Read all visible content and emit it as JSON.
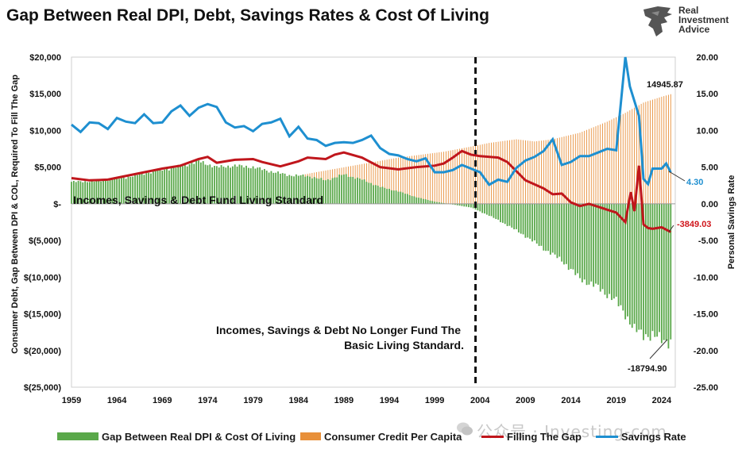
{
  "title": "Gap Between Real DPI, Debt, Savings Rates & Cost Of Living",
  "brand": {
    "line1": "Real",
    "line2": "Investment",
    "line3": "Advice"
  },
  "watermark": "公众号 · Investing-com",
  "colors": {
    "gap_fill": "#5aa84a",
    "credit_fill": "#e8903a",
    "filling_gap": "#c0161c",
    "savings_rate": "#1e8fd0"
  },
  "chart_data": {
    "type": "bar",
    "title": "Gap Between Real DPI, Debt, Savings Rates & Cost Of Living",
    "x_tick_labels": [
      "1959",
      "1964",
      "1969",
      "1974",
      "1979",
      "1984",
      "1989",
      "1994",
      "1999",
      "2004",
      "2009",
      "2014",
      "2019",
      "2024"
    ],
    "x_range": [
      1959,
      2025.5
    ],
    "left_axis": {
      "label": "Consumer Debt, Gap Between DPI & COL, Required To Fill The Gap",
      "range": [
        -25000,
        20000
      ],
      "tick_labels": [
        "$20,000",
        "$15,000",
        "$10,000",
        "$5,000",
        "$-",
        "$(5,000)",
        "$(10,000)",
        "$(15,000)",
        "$(20,000)",
        "$(25,000)"
      ]
    },
    "right_axis": {
      "label": "Personal Savings Rate",
      "range": [
        -25,
        20
      ],
      "tick_labels": [
        "20.00",
        "15.00",
        "10.00",
        "5.00",
        "0.00",
        "-5.00",
        "-10.00",
        "-15.00",
        "-20.00",
        "-25.00"
      ]
    },
    "vertical_marker_year": 2003.5,
    "grid": false,
    "legend_position": "bottom",
    "series": [
      {
        "name": "Gap Between Real DPI & Cost Of Living",
        "kind": "bar",
        "points": [
          [
            1959,
            3000
          ],
          [
            1962,
            3100
          ],
          [
            1965,
            3600
          ],
          [
            1968,
            4400
          ],
          [
            1971,
            5100
          ],
          [
            1973,
            5800
          ],
          [
            1975,
            5000
          ],
          [
            1977,
            5200
          ],
          [
            1979,
            5000
          ],
          [
            1981,
            4400
          ],
          [
            1983,
            3900
          ],
          [
            1985,
            3800
          ],
          [
            1987,
            3200
          ],
          [
            1989,
            4000
          ],
          [
            1991,
            3300
          ],
          [
            1993,
            2300
          ],
          [
            1995,
            1700
          ],
          [
            1997,
            900
          ],
          [
            1999,
            300
          ],
          [
            2001,
            -100
          ],
          [
            2003,
            -500
          ],
          [
            2005,
            -1600
          ],
          [
            2007,
            -2900
          ],
          [
            2009,
            -4400
          ],
          [
            2011,
            -6100
          ],
          [
            2013,
            -7700
          ],
          [
            2015,
            -10200
          ],
          [
            2017,
            -11400
          ],
          [
            2019,
            -13300
          ],
          [
            2020,
            -15000
          ],
          [
            2021,
            -17200
          ],
          [
            2022,
            -17800
          ],
          [
            2023,
            -18000
          ],
          [
            2024,
            -18500
          ],
          [
            2025,
            -18794.9
          ]
        ]
      },
      {
        "name": "Consumer Credit Per Capita",
        "kind": "bar",
        "points": [
          [
            1959,
            300
          ],
          [
            1965,
            700
          ],
          [
            1970,
            1100
          ],
          [
            1975,
            1700
          ],
          [
            1980,
            2700
          ],
          [
            1985,
            4100
          ],
          [
            1990,
            5200
          ],
          [
            1995,
            6300
          ],
          [
            2000,
            7100
          ],
          [
            2003,
            7800
          ],
          [
            2005,
            8300
          ],
          [
            2008,
            8800
          ],
          [
            2010,
            8500
          ],
          [
            2012,
            8800
          ],
          [
            2015,
            9700
          ],
          [
            2018,
            11200
          ],
          [
            2020,
            12400
          ],
          [
            2022,
            13800
          ],
          [
            2024,
            14600
          ],
          [
            2025,
            14945.87
          ]
        ]
      },
      {
        "name": "Filling The Gap",
        "kind": "line",
        "points": [
          [
            1959,
            3500
          ],
          [
            1961,
            3200
          ],
          [
            1963,
            3300
          ],
          [
            1965,
            3800
          ],
          [
            1967,
            4300
          ],
          [
            1969,
            4800
          ],
          [
            1971,
            5200
          ],
          [
            1973,
            6100
          ],
          [
            1974,
            6400
          ],
          [
            1975,
            5600
          ],
          [
            1977,
            6000
          ],
          [
            1979,
            6100
          ],
          [
            1980,
            5700
          ],
          [
            1982,
            5100
          ],
          [
            1984,
            5800
          ],
          [
            1985,
            6300
          ],
          [
            1987,
            6100
          ],
          [
            1988,
            6700
          ],
          [
            1989,
            7000
          ],
          [
            1991,
            6300
          ],
          [
            1993,
            5000
          ],
          [
            1995,
            4700
          ],
          [
            1997,
            5000
          ],
          [
            1999,
            5200
          ],
          [
            2000,
            5500
          ],
          [
            2001,
            6300
          ],
          [
            2002,
            7200
          ],
          [
            2003,
            6700
          ],
          [
            2004,
            6500
          ],
          [
            2006,
            6300
          ],
          [
            2007,
            5700
          ],
          [
            2009,
            3200
          ],
          [
            2011,
            2100
          ],
          [
            2012,
            1300
          ],
          [
            2013,
            1400
          ],
          [
            2014,
            200
          ],
          [
            2015,
            -300
          ],
          [
            2016,
            0
          ],
          [
            2017,
            -400
          ],
          [
            2018,
            -800
          ],
          [
            2019,
            -1200
          ],
          [
            2020,
            -2500
          ],
          [
            2020.6,
            1600
          ],
          [
            2021,
            -1000
          ],
          [
            2021.5,
            5200
          ],
          [
            2022,
            -2800
          ],
          [
            2022.5,
            -3300
          ],
          [
            2023,
            -3400
          ],
          [
            2024,
            -3200
          ],
          [
            2025,
            -3849.03
          ]
        ]
      },
      {
        "name": "Savings Rate",
        "kind": "line",
        "points": [
          [
            1959,
            10.8
          ],
          [
            1960,
            9.8
          ],
          [
            1961,
            11.1
          ],
          [
            1962,
            11.0
          ],
          [
            1963,
            10.2
          ],
          [
            1964,
            11.7
          ],
          [
            1965,
            11.2
          ],
          [
            1966,
            11.0
          ],
          [
            1967,
            12.2
          ],
          [
            1968,
            11.0
          ],
          [
            1969,
            11.1
          ],
          [
            1970,
            12.6
          ],
          [
            1971,
            13.4
          ],
          [
            1972,
            12.0
          ],
          [
            1973,
            13.1
          ],
          [
            1974,
            13.6
          ],
          [
            1975,
            13.2
          ],
          [
            1976,
            11.1
          ],
          [
            1977,
            10.4
          ],
          [
            1978,
            10.6
          ],
          [
            1979,
            9.9
          ],
          [
            1980,
            10.9
          ],
          [
            1981,
            11.1
          ],
          [
            1982,
            11.6
          ],
          [
            1983,
            9.2
          ],
          [
            1984,
            10.5
          ],
          [
            1985,
            8.9
          ],
          [
            1986,
            8.7
          ],
          [
            1987,
            7.9
          ],
          [
            1988,
            8.3
          ],
          [
            1989,
            8.4
          ],
          [
            1990,
            8.3
          ],
          [
            1991,
            8.7
          ],
          [
            1992,
            9.3
          ],
          [
            1993,
            7.6
          ],
          [
            1994,
            6.8
          ],
          [
            1995,
            6.6
          ],
          [
            1996,
            6.1
          ],
          [
            1997,
            5.8
          ],
          [
            1998,
            6.2
          ],
          [
            1999,
            4.3
          ],
          [
            2000,
            4.3
          ],
          [
            2001,
            4.6
          ],
          [
            2002,
            5.3
          ],
          [
            2003,
            4.8
          ],
          [
            2004,
            4.3
          ],
          [
            2005,
            2.6
          ],
          [
            2006,
            3.3
          ],
          [
            2007,
            3.0
          ],
          [
            2008,
            4.9
          ],
          [
            2009,
            5.9
          ],
          [
            2010,
            6.4
          ],
          [
            2011,
            7.2
          ],
          [
            2012,
            8.8
          ],
          [
            2013,
            5.3
          ],
          [
            2014,
            5.7
          ],
          [
            2015,
            6.5
          ],
          [
            2016,
            6.5
          ],
          [
            2017,
            7.0
          ],
          [
            2018,
            7.5
          ],
          [
            2019,
            7.3
          ],
          [
            2020,
            20.0
          ],
          [
            2020.5,
            16.0
          ],
          [
            2021,
            14.0
          ],
          [
            2021.5,
            12.0
          ],
          [
            2022,
            3.4
          ],
          [
            2022.5,
            2.7
          ],
          [
            2023,
            4.8
          ],
          [
            2024,
            4.8
          ],
          [
            2024.5,
            5.5
          ],
          [
            2025,
            4.3
          ]
        ]
      }
    ],
    "annotations": [
      "Incomes, Savings & Debt Fund Living Standard",
      "Incomes, Savings & Debt No Longer Fund The",
      "Basic Living Standard.",
      "14945.87",
      "4.30",
      "-3849.03",
      "-18794.90"
    ]
  }
}
